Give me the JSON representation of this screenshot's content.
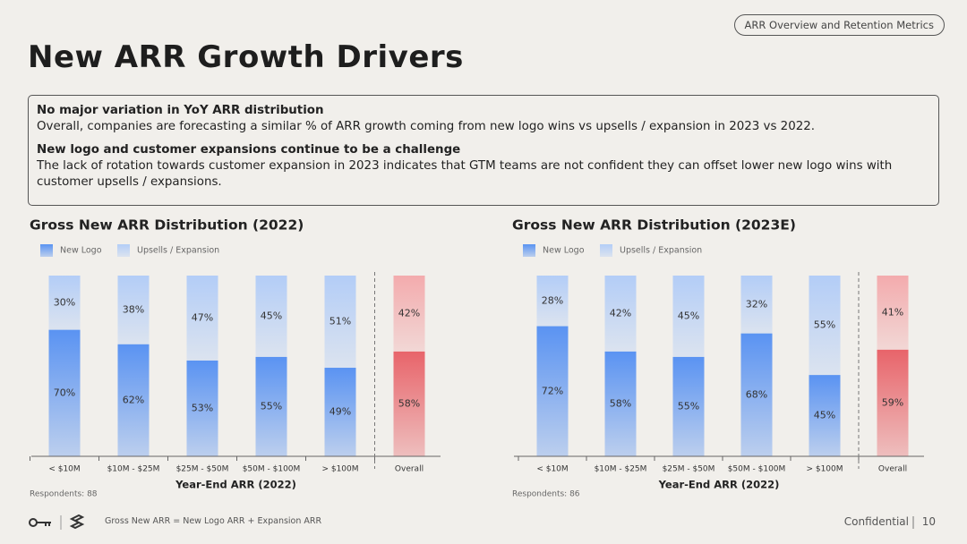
{
  "page": {
    "tag": "ARR Overview and Retention Metrics",
    "title": "New ARR Growth Drivers",
    "callout": [
      {
        "heading": "No major variation in YoY ARR distribution",
        "body": "Overall, companies are forecasting a similar % of ARR growth coming from new logo wins vs upsells / expansion in 2023 vs 2022."
      },
      {
        "heading": "New logo and customer expansions continue to be a challenge",
        "body": "The lack of rotation towards customer expansion in 2023 indicates that GTM teams are not confident they can offset lower new logo wins with customer upsells / expansions."
      }
    ],
    "footnote": "Gross New ARR = New Logo ARR + Expansion ARR",
    "confidential": "Confidential",
    "page_number": "10"
  },
  "chart_data": [
    {
      "type": "bar",
      "stacked": true,
      "title": "Gross New ARR Distribution (2022)",
      "x_label": "Year-End ARR (2022)",
      "note": "Respondents: 88",
      "categories": [
        "< $10M",
        "$10M - $25M",
        "$25M - $50M",
        "$50M - $100M",
        "> $100M",
        "Overall"
      ],
      "ylim": [
        0,
        100
      ],
      "series": [
        {
          "name": "New Logo",
          "color": [
            "#5a93f2",
            "#5a93f2",
            "#5a93f2",
            "#5a93f2",
            "#5a93f2",
            "#e8646a"
          ],
          "values": [
            70,
            62,
            53,
            55,
            49,
            58
          ],
          "value_labels": [
            "70%",
            "62%",
            "53%",
            "55%",
            "49%",
            "58%"
          ]
        },
        {
          "name": "Upsells / Expansion",
          "color": [
            "#b3cdf7",
            "#b3cdf7",
            "#b3cdf7",
            "#b3cdf7",
            "#b3cdf7",
            "#f3abad"
          ],
          "values": [
            30,
            38,
            47,
            45,
            51,
            42
          ],
          "value_labels": [
            "30%",
            "38%",
            "47%",
            "45%",
            "51%",
            "42%"
          ]
        }
      ]
    },
    {
      "type": "bar",
      "stacked": true,
      "title": "Gross New ARR Distribution (2023E)",
      "x_label": "Year-End ARR (2022)",
      "note": "Respondents: 86",
      "categories": [
        "< $10M",
        "$10M - $25M",
        "$25M - $50M",
        "$50M - $100M",
        "> $100M",
        "Overall"
      ],
      "ylim": [
        0,
        100
      ],
      "series": [
        {
          "name": "New Logo",
          "color": [
            "#5a93f2",
            "#5a93f2",
            "#5a93f2",
            "#5a93f2",
            "#5a93f2",
            "#e8646a"
          ],
          "values": [
            72,
            58,
            55,
            68,
            45,
            59
          ],
          "value_labels": [
            "72%",
            "58%",
            "55%",
            "68%",
            "45%",
            "59%"
          ]
        },
        {
          "name": "Upsells / Expansion",
          "color": [
            "#b3cdf7",
            "#b3cdf7",
            "#b3cdf7",
            "#b3cdf7",
            "#b3cdf7",
            "#f3abad"
          ],
          "values": [
            28,
            42,
            45,
            32,
            55,
            41
          ],
          "value_labels": [
            "28%",
            "42%",
            "45%",
            "32%",
            "55%",
            "41%"
          ]
        }
      ]
    }
  ]
}
